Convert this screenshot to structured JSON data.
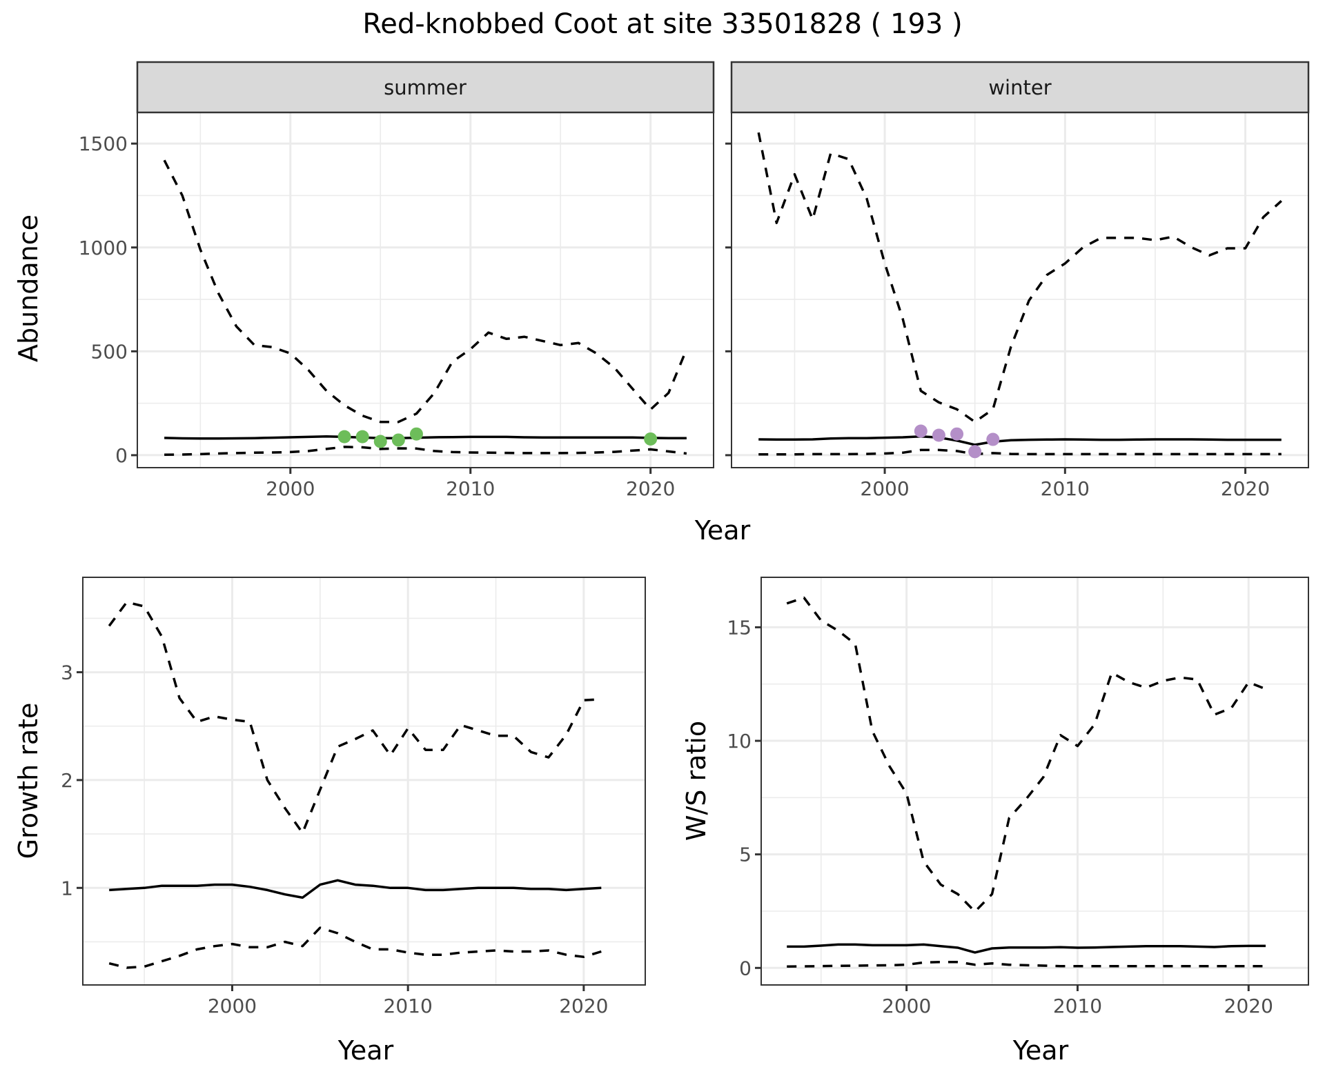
{
  "chart_data": {
    "title": "Red-knobbed Coot at site 33501828 ( 193 )",
    "colors": {
      "summer_points": "#6dbd5a",
      "winter_points": "#b48fc8",
      "lines": "#000000",
      "strip": "#d9d9d9"
    },
    "panels": [
      {
        "id": "summer",
        "type": "line",
        "strip_label": "summer",
        "xlabel": "Year",
        "ylabel": "Abundance",
        "xlim": [
          1991.5,
          2023.5
        ],
        "ylim": [
          -60,
          1650
        ],
        "xticks": [
          2000,
          2010,
          2020
        ],
        "xtick_labels": [
          "2000",
          "2010",
          "2020"
        ],
        "yticks": [
          0,
          500,
          1000,
          1500
        ],
        "ytick_labels": [
          "0",
          "500",
          "1000",
          "1500"
        ],
        "grid": true,
        "x": [
          1993,
          1994,
          1995,
          1996,
          1997,
          1998,
          1999,
          2000,
          2001,
          2002,
          2003,
          2004,
          2005,
          2006,
          2007,
          2008,
          2009,
          2010,
          2011,
          2012,
          2013,
          2014,
          2015,
          2016,
          2017,
          2018,
          2019,
          2020,
          2021,
          2022
        ],
        "series": [
          {
            "name": "upper",
            "style": "dashed",
            "values": [
              1420,
              1250,
              990,
              780,
              620,
              530,
              520,
              490,
              410,
              310,
              240,
              190,
              160,
              160,
              200,
              300,
              450,
              510,
              590,
              560,
              570,
              550,
              530,
              540,
              490,
              420,
              320,
              220,
              300,
              510
            ]
          },
          {
            "name": "estimate",
            "style": "solid",
            "values": [
              83,
              81,
              80,
              80,
              81,
              82,
              84,
              86,
              88,
              90,
              88,
              85,
              82,
              82,
              84,
              86,
              87,
              88,
              88,
              88,
              86,
              85,
              85,
              85,
              85,
              85,
              85,
              83,
              82,
              82
            ]
          },
          {
            "name": "lower",
            "style": "dashed",
            "values": [
              2,
              3,
              5,
              8,
              10,
              12,
              13,
              15,
              20,
              30,
              40,
              38,
              30,
              33,
              32,
              20,
              15,
              13,
              12,
              11,
              10,
              10,
              10,
              11,
              13,
              16,
              22,
              28,
              18,
              8
            ]
          }
        ],
        "points": {
          "x": [
            2003,
            2004,
            2005,
            2006,
            2007,
            2020
          ],
          "y": [
            89,
            89,
            66,
            73,
            102,
            78
          ]
        }
      },
      {
        "id": "winter",
        "type": "line",
        "strip_label": "winter",
        "xlabel": "Year",
        "ylabel": "Abundance",
        "xlim": [
          1991.5,
          2023.5
        ],
        "ylim": [
          -60,
          1650
        ],
        "xticks": [
          2000,
          2010,
          2020
        ],
        "xtick_labels": [
          "2000",
          "2010",
          "2020"
        ],
        "yticks": [
          0,
          500,
          1000,
          1500
        ],
        "grid": true,
        "x": [
          1993,
          1994,
          1995,
          1996,
          1997,
          1998,
          1999,
          2000,
          2001,
          2002,
          2003,
          2004,
          2005,
          2006,
          2007,
          2008,
          2009,
          2010,
          2011,
          2012,
          2013,
          2014,
          2015,
          2016,
          2017,
          2018,
          2019,
          2020,
          2021,
          2022
        ],
        "series": [
          {
            "name": "upper",
            "style": "dashed",
            "values": [
              1553,
              1118,
              1352,
              1135,
              1453,
              1425,
              1236,
              923,
              656,
              310,
              254,
              221,
              160,
              221,
              522,
              745,
              868,
              923,
              1001,
              1046,
              1046,
              1046,
              1035,
              1052,
              1001,
              962,
              996,
              996,
              1146,
              1224
            ]
          },
          {
            "name": "estimate",
            "style": "solid",
            "values": [
              76,
              75,
              75,
              76,
              80,
              82,
              82,
              84,
              86,
              90,
              85,
              70,
              50,
              65,
              72,
              74,
              75,
              76,
              75,
              74,
              74,
              75,
              76,
              76,
              76,
              75,
              74,
              74,
              74,
              74
            ]
          },
          {
            "name": "lower",
            "style": "dashed",
            "values": [
              4,
              4,
              4,
              5,
              5,
              5,
              6,
              8,
              12,
              25,
              25,
              20,
              5,
              10,
              6,
              5,
              5,
              5,
              5,
              5,
              5,
              5,
              5,
              5,
              5,
              5,
              5,
              5,
              5,
              5
            ]
          }
        ],
        "points": {
          "x": [
            2002,
            2003,
            2004,
            2005,
            2006
          ],
          "y": [
            116,
            96,
            102,
            17,
            76
          ]
        }
      },
      {
        "id": "growth",
        "type": "line",
        "xlabel": "Year",
        "ylabel": "Growth rate",
        "xlim": [
          1991.5,
          2023.5
        ],
        "ylim": [
          0.1,
          3.88
        ],
        "xticks": [
          2000,
          2010,
          2020
        ],
        "xtick_labels": [
          "2000",
          "2010",
          "2020"
        ],
        "yticks": [
          1,
          2,
          3
        ],
        "ytick_labels": [
          "1",
          "2",
          "3"
        ],
        "grid": true,
        "x": [
          1993,
          1994,
          1995,
          1996,
          1997,
          1998,
          1999,
          2000,
          2001,
          2002,
          2003,
          2004,
          2005,
          2006,
          2007,
          2008,
          2009,
          2010,
          2011,
          2012,
          2013,
          2014,
          2015,
          2016,
          2017,
          2018,
          2019,
          2020,
          2021
        ],
        "series": [
          {
            "name": "upper",
            "style": "dashed",
            "values": [
              3.43,
              3.65,
              3.61,
              3.33,
              2.76,
              2.54,
              2.59,
              2.56,
              2.54,
              2.0,
              1.74,
              1.51,
              1.91,
              2.31,
              2.38,
              2.46,
              2.23,
              2.48,
              2.28,
              2.28,
              2.51,
              2.46,
              2.41,
              2.41,
              2.26,
              2.21,
              2.42,
              2.74,
              2.75
            ]
          },
          {
            "name": "estimate",
            "style": "solid",
            "values": [
              0.98,
              0.99,
              1.0,
              1.02,
              1.02,
              1.02,
              1.03,
              1.03,
              1.01,
              0.98,
              0.94,
              0.91,
              1.03,
              1.07,
              1.03,
              1.02,
              1.0,
              1.0,
              0.98,
              0.98,
              0.99,
              1.0,
              1.0,
              1.0,
              0.99,
              0.99,
              0.98,
              0.99,
              1.0
            ]
          },
          {
            "name": "lower",
            "style": "dashed",
            "values": [
              0.3,
              0.26,
              0.27,
              0.32,
              0.37,
              0.43,
              0.46,
              0.48,
              0.45,
              0.45,
              0.5,
              0.46,
              0.63,
              0.58,
              0.5,
              0.43,
              0.43,
              0.4,
              0.38,
              0.38,
              0.4,
              0.41,
              0.42,
              0.41,
              0.41,
              0.42,
              0.38,
              0.36,
              0.41
            ]
          }
        ]
      },
      {
        "id": "ws-ratio",
        "type": "line",
        "xlabel": "Year",
        "ylabel": "W/S ratio",
        "xlim": [
          1991.5,
          2023.5
        ],
        "ylim": [
          -0.75,
          17.2
        ],
        "xticks": [
          2000,
          2010,
          2020
        ],
        "xtick_labels": [
          "2000",
          "2010",
          "2020"
        ],
        "yticks": [
          0,
          5,
          10,
          15
        ],
        "ytick_labels": [
          "0",
          "5",
          "10",
          "15"
        ],
        "grid": true,
        "x": [
          1993,
          1994,
          1995,
          1996,
          1997,
          1998,
          1999,
          2000,
          2001,
          2002,
          2003,
          2004,
          2005,
          2006,
          2007,
          2008,
          2009,
          2010,
          2011,
          2012,
          2013,
          2014,
          2015,
          2016,
          2017,
          2018,
          2019,
          2020,
          2021
        ],
        "series": [
          {
            "name": "upper",
            "style": "dashed",
            "values": [
              16.05,
              16.3,
              15.3,
              14.85,
              14.26,
              10.43,
              8.88,
              7.68,
              4.69,
              3.67,
              3.25,
              2.48,
              3.25,
              6.6,
              7.44,
              8.4,
              10.25,
              9.77,
              10.73,
              13.0,
              12.58,
              12.34,
              12.64,
              12.79,
              12.7,
              11.15,
              11.45,
              12.58,
              12.28
            ]
          },
          {
            "name": "estimate",
            "style": "solid",
            "values": [
              0.94,
              0.94,
              0.98,
              1.03,
              1.03,
              1.0,
              1.0,
              1.0,
              1.03,
              0.96,
              0.89,
              0.68,
              0.86,
              0.9,
              0.9,
              0.9,
              0.91,
              0.89,
              0.9,
              0.92,
              0.94,
              0.96,
              0.96,
              0.96,
              0.94,
              0.92,
              0.96,
              0.97,
              0.97
            ]
          },
          {
            "name": "lower",
            "style": "dashed",
            "values": [
              0.06,
              0.07,
              0.08,
              0.09,
              0.1,
              0.11,
              0.12,
              0.14,
              0.24,
              0.26,
              0.26,
              0.14,
              0.2,
              0.14,
              0.12,
              0.1,
              0.08,
              0.08,
              0.08,
              0.08,
              0.08,
              0.08,
              0.08,
              0.08,
              0.08,
              0.08,
              0.08,
              0.08,
              0.08
            ]
          }
        ]
      }
    ]
  },
  "shared_xlabel_top": "Year"
}
